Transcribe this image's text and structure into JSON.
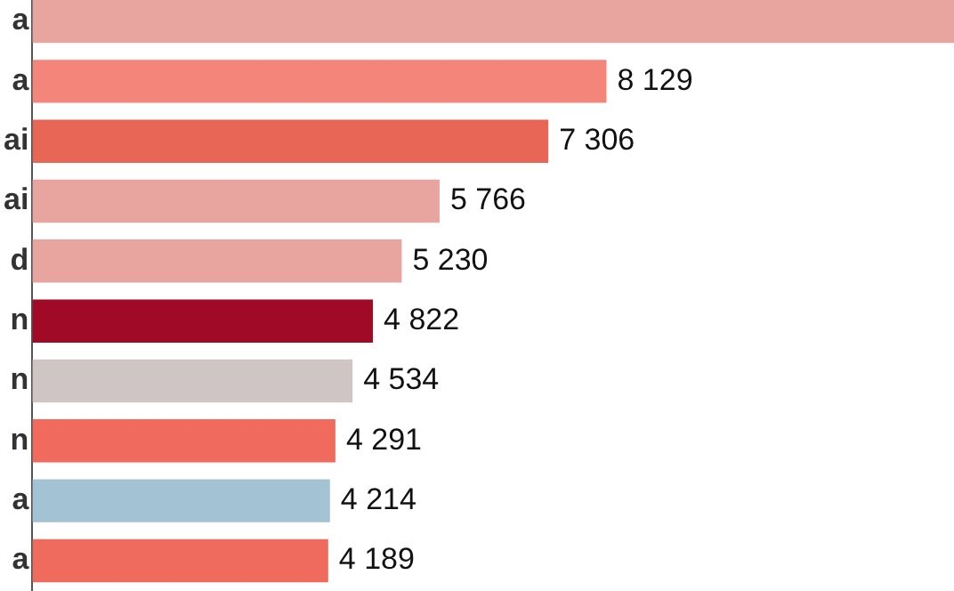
{
  "chart_data": {
    "type": "bar",
    "orientation": "horizontal",
    "categories": [
      "a",
      "a",
      "ai",
      "ai",
      "d",
      "n",
      "n",
      "n",
      "a",
      "a"
    ],
    "values": [
      13050,
      8129,
      7306,
      5766,
      5230,
      4822,
      4534,
      4291,
      4214,
      4189
    ],
    "value_labels": [
      null,
      "8 129",
      "7 306",
      "5 766",
      "5 230",
      "4 822",
      "4 534",
      "4 291",
      "4 214",
      "4 189"
    ],
    "colors": [
      "#e8a5a0",
      "#f4857a",
      "#e86655",
      "#e8a5a0",
      "#e8a5a0",
      "#a00a26",
      "#d0c5c5",
      "#f06b5e",
      "#a3c2d4",
      "#ef6b5d"
    ],
    "xlim": [
      0,
      13050
    ],
    "tick_labels": "y"
  }
}
